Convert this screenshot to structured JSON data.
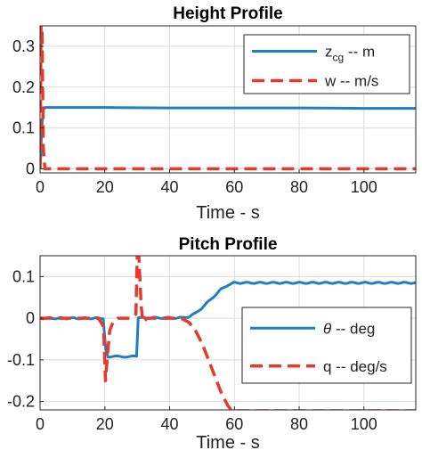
{
  "chart_data": [
    {
      "type": "line",
      "title": "Height Profile",
      "xlabel": "Time - s",
      "ylabel": "",
      "xlim": [
        0,
        116
      ],
      "ylim": [
        -0.01,
        0.35
      ],
      "xticks": [
        0,
        20,
        40,
        60,
        80,
        100
      ],
      "yticks": [
        0,
        0.1,
        0.2,
        0.3
      ],
      "xtick_labels": [
        "0",
        "20",
        "40",
        "60",
        "80",
        "100"
      ],
      "ytick_labels": [
        "0",
        "0.1",
        "0.2",
        "0.3"
      ],
      "grid": true,
      "legend_position": "top-right",
      "series": [
        {
          "name_main": "z",
          "name_sub": "cg",
          "name_rest": " -- m",
          "color": "#1f7fc4",
          "style": "solid",
          "x": [
            0,
            0.2,
            0.5,
            1.0,
            1.5,
            5,
            20,
            40,
            60,
            80,
            100,
            116
          ],
          "y": [
            0.0,
            0.03,
            0.1,
            0.145,
            0.15,
            0.15,
            0.15,
            0.149,
            0.149,
            0.149,
            0.148,
            0.148
          ]
        },
        {
          "name": "w -- m/s",
          "color": "#e8392a",
          "style": "dashed",
          "x": [
            0,
            0.3,
            0.6,
            1.0,
            1.5,
            3,
            20,
            40,
            60,
            80,
            100,
            116
          ],
          "y": [
            0.0,
            0.35,
            0.35,
            0.05,
            0.0,
            0.0,
            0.0,
            0.0,
            0.0,
            0.0,
            0.0,
            0.0
          ]
        }
      ]
    },
    {
      "type": "line",
      "title": "Pitch Profile",
      "xlabel": "Time - s",
      "ylabel": "",
      "xlim": [
        0,
        116
      ],
      "ylim": [
        -0.22,
        0.15
      ],
      "xticks": [
        0,
        20,
        40,
        60,
        80,
        100
      ],
      "yticks": [
        0.1,
        0,
        -0.1,
        -0.2
      ],
      "xtick_labels": [
        "0",
        "20",
        "40",
        "60",
        "80",
        "100"
      ],
      "ytick_labels": [
        "0.1",
        "0",
        "-0.1",
        "-0.2"
      ],
      "grid": true,
      "legend_position": "bottom-right",
      "series": [
        {
          "name_main": "θ",
          "name_rest": " -- deg",
          "color": "#1f7fc4",
          "style": "solid",
          "x": [
            0,
            19.5,
            20.3,
            21,
            22,
            29.8,
            30.3,
            31,
            44,
            46,
            48,
            50,
            52,
            54,
            56,
            58,
            60,
            80,
            100,
            116
          ],
          "y": [
            0,
            0,
            -0.075,
            -0.092,
            -0.092,
            -0.092,
            0,
            0.001,
            0.001,
            0.004,
            0.012,
            0.025,
            0.04,
            0.055,
            0.07,
            0.08,
            0.085,
            0.085,
            0.085,
            0.085
          ],
          "noise": 0.003
        },
        {
          "name": "q -- deg/s",
          "color": "#e8392a",
          "style": "dashed",
          "x": [
            0,
            18,
            19.6,
            20.2,
            20.8,
            21.5,
            22.5,
            24,
            28,
            29.6,
            30.0,
            30.5,
            31.2,
            31.8,
            33,
            42,
            44,
            46,
            48,
            50,
            52,
            54,
            56,
            58,
            59,
            60,
            80,
            100,
            116
          ],
          "y": [
            0,
            0,
            -0.02,
            -0.15,
            -0.09,
            -0.03,
            -0.01,
            0,
            0,
            0.01,
            0.15,
            0.15,
            0.03,
            -0.01,
            0,
            0,
            -0.002,
            -0.01,
            -0.03,
            -0.06,
            -0.1,
            -0.14,
            -0.18,
            -0.21,
            -0.22,
            -0.222,
            -0.222,
            -0.222,
            -0.222
          ]
        }
      ]
    }
  ]
}
